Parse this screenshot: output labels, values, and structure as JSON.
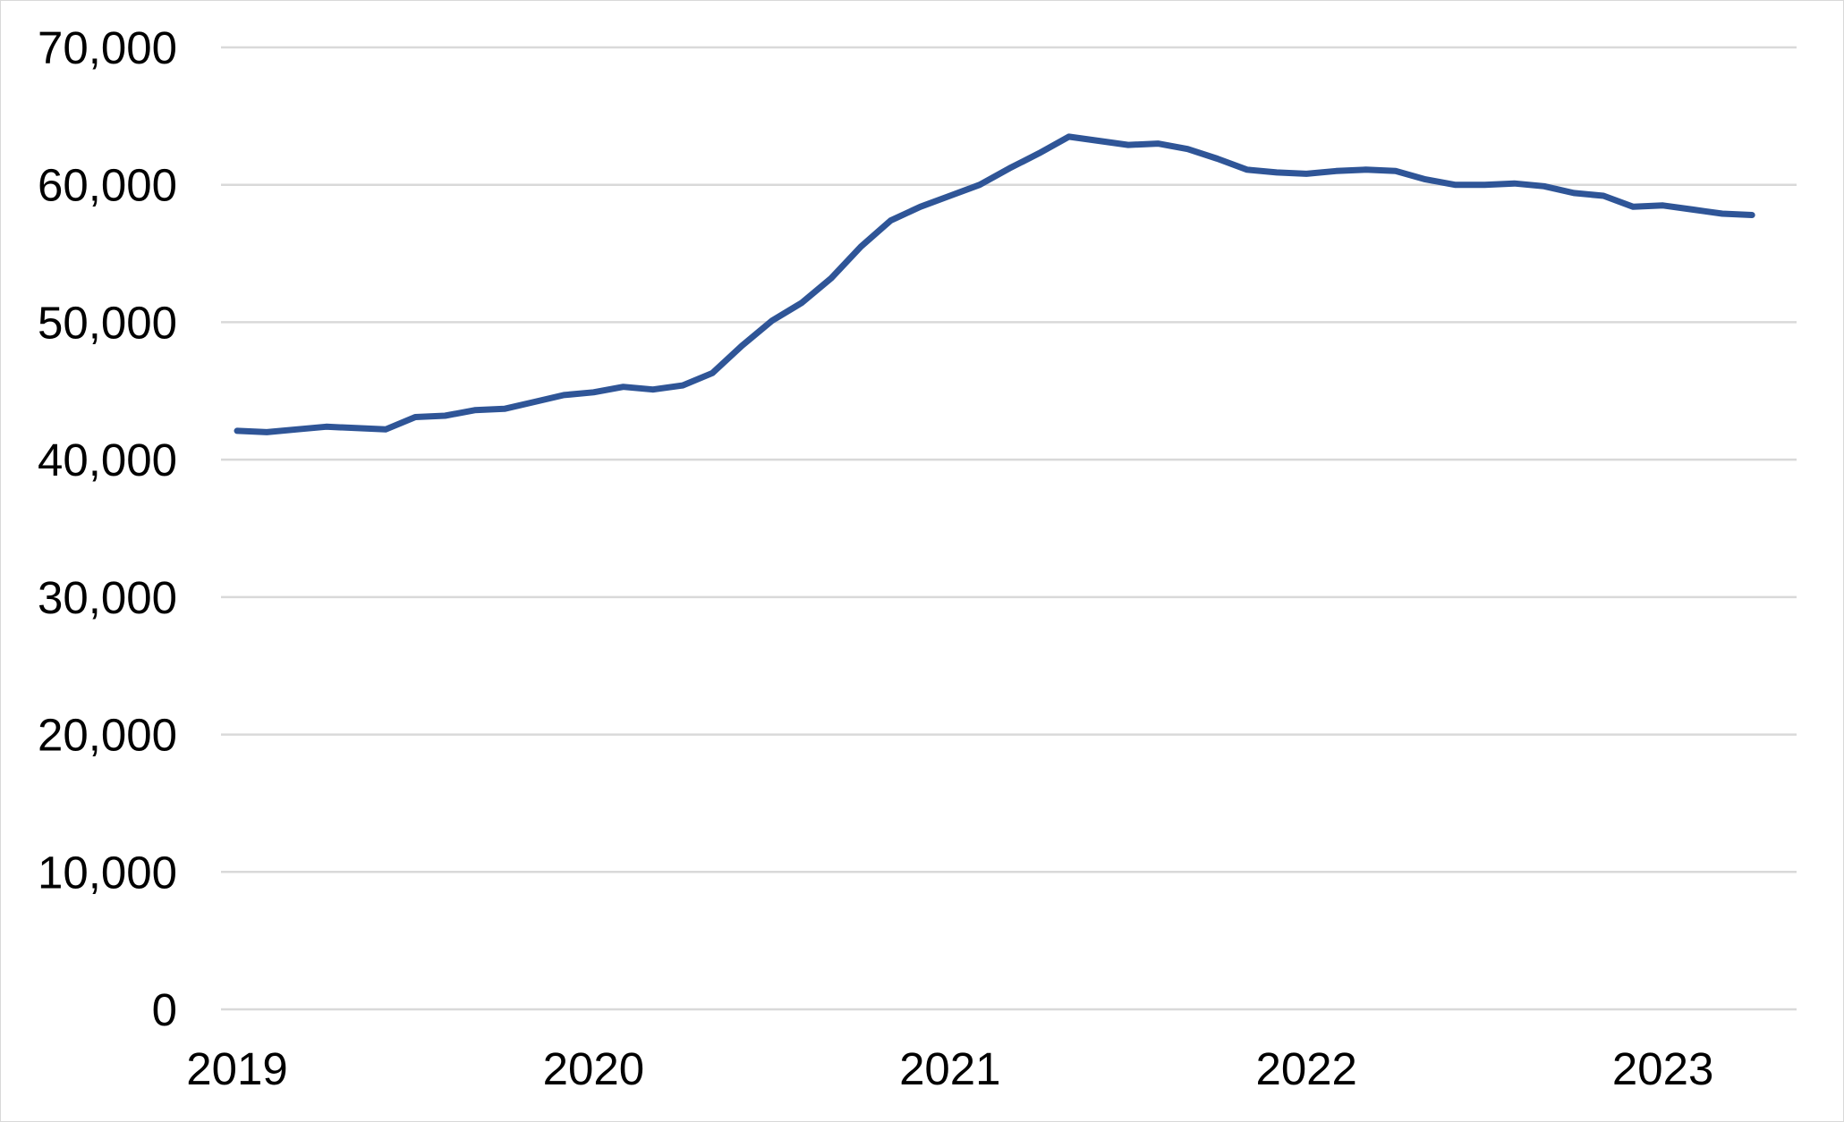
{
  "chart_data": {
    "type": "line",
    "title": "",
    "xlabel": "",
    "ylabel": "",
    "x_tick_labels": [
      "2019",
      "2020",
      "2021",
      "2022",
      "2023"
    ],
    "y_tick_labels": [
      "0",
      "10,000",
      "20,000",
      "30,000",
      "40,000",
      "50,000",
      "60,000",
      "70,000"
    ],
    "y_ticks": [
      0,
      10000,
      20000,
      30000,
      40000,
      50000,
      60000,
      70000
    ],
    "ylim": [
      0,
      70000
    ],
    "xlim": [
      "2019-01",
      "2023-04"
    ],
    "grid": "horizontal",
    "legend": "none",
    "x": [
      "2019-01",
      "2019-02",
      "2019-03",
      "2019-04",
      "2019-05",
      "2019-06",
      "2019-07",
      "2019-08",
      "2019-09",
      "2019-10",
      "2019-11",
      "2019-12",
      "2020-01",
      "2020-02",
      "2020-03",
      "2020-04",
      "2020-05",
      "2020-06",
      "2020-07",
      "2020-08",
      "2020-09",
      "2020-10",
      "2020-11",
      "2020-12",
      "2021-01",
      "2021-02",
      "2021-03",
      "2021-04",
      "2021-05",
      "2021-06",
      "2021-07",
      "2021-08",
      "2021-09",
      "2021-10",
      "2021-11",
      "2021-12",
      "2022-01",
      "2022-02",
      "2022-03",
      "2022-04",
      "2022-05",
      "2022-06",
      "2022-07",
      "2022-08",
      "2022-09",
      "2022-10",
      "2022-11",
      "2022-12",
      "2023-01",
      "2023-02",
      "2023-03",
      "2023-04"
    ],
    "series": [
      {
        "color": "#2f5597",
        "values": [
          42100,
          42000,
          42200,
          42400,
          42300,
          42200,
          43100,
          43200,
          43600,
          43700,
          44200,
          44700,
          44900,
          45300,
          45100,
          45400,
          46300,
          48300,
          50100,
          51400,
          53200,
          55500,
          57400,
          58400,
          59200,
          60000,
          61200,
          62300,
          63500,
          63200,
          62900,
          63000,
          62600,
          61900,
          61100,
          60900,
          60800,
          61000,
          61100,
          61000,
          60400,
          60000,
          60000,
          60100,
          59900,
          59400,
          59200,
          58400,
          58500,
          58200,
          57900,
          57800
        ]
      }
    ]
  }
}
